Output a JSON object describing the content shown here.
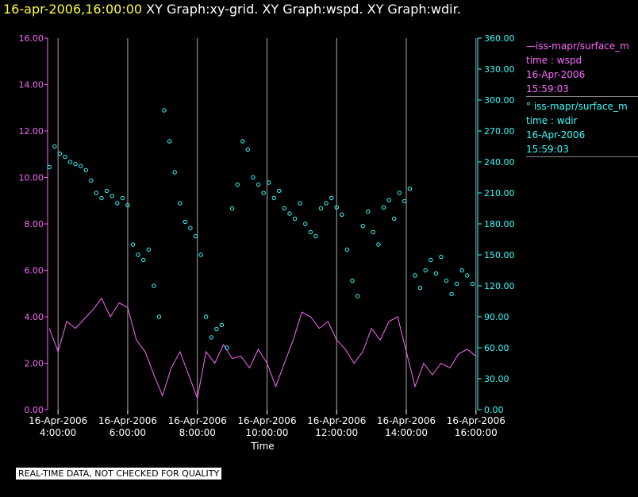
{
  "title": {
    "date": "16-apr-2006,16:00:00",
    "graphs": "  XY Graph:xy-grid.  XY Graph:wspd.  XY Graph:wdir."
  },
  "colors": {
    "wspd": "#ff66ff",
    "wdir": "#33ffff",
    "grid": "#aaaaaa",
    "background": "#000000"
  },
  "legend": {
    "wspd": {
      "line1": "—iss-mapr/surface_m",
      "line2": "time : wspd",
      "line3": "16-Apr-2006",
      "line4": "15:59:03"
    },
    "wdir": {
      "line1": "° iss-mapr/surface_m",
      "line2": "time : wdir",
      "line3": "16-Apr-2006",
      "line4": "15:59:03"
    }
  },
  "disclaimer": "REAL-TIME DATA, NOT CHECKED FOR QUALITY",
  "chart_data": {
    "type": "line",
    "title": "XY Graph:wspd / XY Graph:wdir",
    "xlabel": "Time",
    "xlim_hours": [
      3.7,
      16.05
    ],
    "x_ticks": [
      {
        "hour": 4,
        "date": "16-Apr-2006",
        "time": "4:00:00"
      },
      {
        "hour": 6,
        "date": "16-Apr-2006",
        "time": "6:00:00"
      },
      {
        "hour": 8,
        "date": "16-Apr-2006",
        "time": "8:00:00"
      },
      {
        "hour": 10,
        "date": "16-Apr-2006",
        "time": "10:00:00"
      },
      {
        "hour": 12,
        "date": "16-Apr-2006",
        "time": "12:00:00"
      },
      {
        "hour": 14,
        "date": "16-Apr-2006",
        "time": "14:00:00"
      },
      {
        "hour": 16,
        "date": "16-Apr-2006",
        "time": "16:00:00"
      }
    ],
    "left_axis": {
      "series": "wspd",
      "ylim": [
        0,
        16
      ],
      "ticks": [
        "0.00",
        "2.00",
        "4.00",
        "6.00",
        "8.00",
        "10.00",
        "12.00",
        "14.00",
        "16.00"
      ]
    },
    "right_axis": {
      "series": "wdir",
      "ylim": [
        0,
        360
      ],
      "ticks": [
        "0.00",
        "30.00",
        "60.00",
        "90.00",
        "120.00",
        "150.00",
        "180.00",
        "210.00",
        "240.00",
        "270.00",
        "300.00",
        "330.00",
        "360.00"
      ]
    },
    "series": [
      {
        "name": "wspd",
        "style": "line",
        "axis": "left",
        "x": [
          3.75,
          4.0,
          4.25,
          4.5,
          4.75,
          5.0,
          5.25,
          5.5,
          5.75,
          6.0,
          6.25,
          6.5,
          6.75,
          7.0,
          7.25,
          7.5,
          7.75,
          8.0,
          8.25,
          8.5,
          8.75,
          9.0,
          9.25,
          9.5,
          9.75,
          10.0,
          10.25,
          10.5,
          10.75,
          11.0,
          11.25,
          11.5,
          11.75,
          12.0,
          12.25,
          12.5,
          12.75,
          13.0,
          13.25,
          13.5,
          13.75,
          14.0,
          14.25,
          14.5,
          14.75,
          15.0,
          15.25,
          15.5,
          15.75,
          16.0
        ],
        "values": [
          3.5,
          2.5,
          3.8,
          3.5,
          3.9,
          4.3,
          4.8,
          4.0,
          4.6,
          4.4,
          3.0,
          2.5,
          1.5,
          0.6,
          1.8,
          2.5,
          1.5,
          0.5,
          2.5,
          2.0,
          2.8,
          2.2,
          2.3,
          1.8,
          2.6,
          2.0,
          1.0,
          2.0,
          3.0,
          4.2,
          4.0,
          3.5,
          3.8,
          3.0,
          2.6,
          2.0,
          2.5,
          3.5,
          3.0,
          3.8,
          4.0,
          2.5,
          1.0,
          2.0,
          1.5,
          2.0,
          1.8,
          2.4,
          2.6,
          2.3
        ]
      },
      {
        "name": "wdir",
        "style": "scatter",
        "axis": "right",
        "x": [
          3.75,
          3.9,
          4.05,
          4.2,
          4.35,
          4.5,
          4.65,
          4.8,
          4.95,
          5.1,
          5.25,
          5.4,
          5.55,
          5.7,
          5.85,
          6.0,
          6.15,
          6.3,
          6.45,
          6.6,
          6.75,
          6.9,
          7.05,
          7.2,
          7.35,
          7.5,
          7.65,
          7.8,
          7.95,
          8.1,
          8.25,
          8.4,
          8.55,
          8.7,
          8.85,
          9.0,
          9.15,
          9.3,
          9.45,
          9.6,
          9.75,
          9.9,
          10.05,
          10.2,
          10.35,
          10.5,
          10.65,
          10.8,
          10.95,
          11.1,
          11.25,
          11.4,
          11.55,
          11.7,
          11.85,
          12.0,
          12.15,
          12.3,
          12.45,
          12.6,
          12.75,
          12.9,
          13.05,
          13.2,
          13.35,
          13.5,
          13.65,
          13.8,
          13.95,
          14.1,
          14.25,
          14.4,
          14.55,
          14.7,
          14.85,
          15.0,
          15.15,
          15.3,
          15.45,
          15.6,
          15.75,
          15.9
        ],
        "values": [
          235,
          255,
          248,
          245,
          240,
          238,
          236,
          232,
          222,
          210,
          205,
          212,
          207,
          200,
          205,
          198,
          160,
          150,
          145,
          155,
          120,
          90,
          290,
          260,
          230,
          200,
          182,
          176,
          168,
          150,
          90,
          70,
          78,
          82,
          60,
          195,
          218,
          260,
          252,
          225,
          218,
          210,
          220,
          205,
          212,
          195,
          190,
          185,
          200,
          180,
          172,
          168,
          195,
          200,
          205,
          196,
          189,
          155,
          125,
          110,
          178,
          192,
          172,
          160,
          196,
          203,
          185,
          210,
          202,
          214,
          130,
          118,
          135,
          145,
          132,
          148,
          125,
          112,
          122,
          135,
          130,
          122
        ]
      }
    ]
  }
}
